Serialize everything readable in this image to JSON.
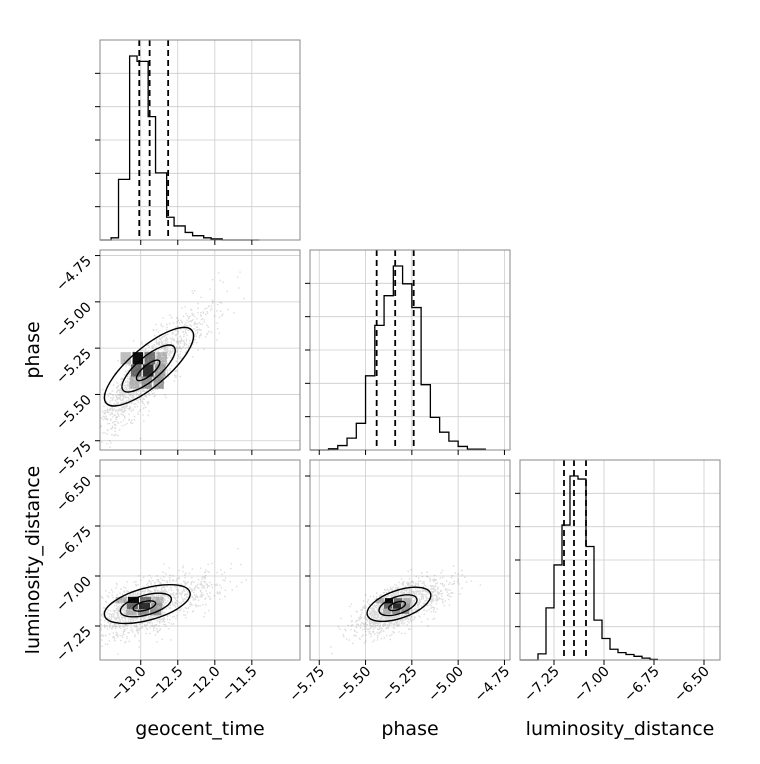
{
  "chart_data": {
    "type": "corner",
    "parameters": [
      "geocent_time",
      "phase",
      "luminosity_distance"
    ],
    "axis_labels": {
      "geocent_time": "geocent_time",
      "phase": "phase",
      "luminosity_distance": "luminosity_distance"
    },
    "ranges": {
      "geocent_time": [
        -13.55,
        -10.85
      ],
      "phase": [
        -5.8,
        -4.72
      ],
      "luminosity_distance": [
        -7.42,
        -6.42
      ]
    },
    "ticks": {
      "geocent_time": [
        "-13.0",
        "-12.5",
        "-12.0",
        "-11.5"
      ],
      "phase": [
        "-5.75",
        "-5.50",
        "-5.25",
        "-5.00",
        "-4.75"
      ],
      "luminosity_distance": [
        "-7.25",
        "-7.00",
        "-6.75",
        "-6.50"
      ]
    },
    "tick_values": {
      "geocent_time": [
        -13.0,
        -12.5,
        -12.0,
        -11.5
      ],
      "phase": [
        -5.75,
        -5.5,
        -5.25,
        -5.0,
        -4.75
      ],
      "luminosity_distance": [
        -7.25,
        -7.0,
        -6.75,
        -6.5
      ]
    },
    "histograms": [
      {
        "parameter": "geocent_time",
        "bin_edges": [
          -13.55,
          -13.4,
          -13.3,
          -13.15,
          -13.05,
          -12.9,
          -12.8,
          -12.65,
          -12.55,
          -12.4,
          -12.3,
          -12.15,
          -12.05,
          -11.9,
          -11.4
        ],
        "counts": [
          0,
          2,
          56,
          170,
          165,
          114,
          62,
          21,
          13,
          7,
          4,
          2,
          1,
          0
        ],
        "quantiles": [
          -13.02,
          -12.88,
          -12.63
        ]
      },
      {
        "parameter": "phase",
        "bin_edges": [
          -5.8,
          -5.7,
          -5.65,
          -5.6,
          -5.55,
          -5.5,
          -5.45,
          -5.4,
          -5.35,
          -5.3,
          -5.25,
          -5.2,
          -5.15,
          -5.1,
          -5.05,
          -5.0,
          -4.95,
          -4.85
        ],
        "counts": [
          0,
          0.4,
          1.5,
          4,
          9,
          25,
          42,
          52,
          62,
          56,
          48,
          22,
          11,
          6,
          3,
          1.2,
          0.3
        ],
        "quantiles": [
          -5.44,
          -5.34,
          -5.24
        ]
      },
      {
        "parameter": "luminosity_distance",
        "bin_edges": [
          -7.42,
          -7.33,
          -7.29,
          -7.25,
          -7.21,
          -7.17,
          -7.13,
          -7.09,
          -7.05,
          -7.01,
          -6.97,
          -6.93,
          -6.89,
          -6.85,
          -6.81,
          -6.77,
          -6.73
        ],
        "counts": [
          0,
          2,
          17,
          31,
          44,
          60,
          59,
          37,
          13,
          7,
          3.5,
          2.4,
          1.8,
          1.2,
          0.6,
          0.2
        ],
        "quantiles": [
          -7.2,
          -7.15,
          -7.09
        ]
      }
    ],
    "joint": [
      {
        "x": "geocent_time",
        "y": "phase",
        "mean": [
          -12.9,
          -5.37
        ],
        "std": [
          0.32,
          0.15
        ],
        "correlation": 0.85,
        "tail": "toward (-11.5, -4.8)"
      },
      {
        "x": "geocent_time",
        "y": "luminosity_distance",
        "mean": [
          -12.95,
          -7.15
        ],
        "std": [
          0.34,
          0.07
        ],
        "correlation": 0.55,
        "tail": "toward (-11.5, -6.5)"
      },
      {
        "x": "phase",
        "y": "luminosity_distance",
        "mean": [
          -5.33,
          -7.15
        ],
        "std": [
          0.1,
          0.06
        ],
        "correlation": 0.6,
        "tail": "toward (-4.9, -6.8)"
      }
    ],
    "grid": true,
    "quantile_line_style": "dashed"
  }
}
